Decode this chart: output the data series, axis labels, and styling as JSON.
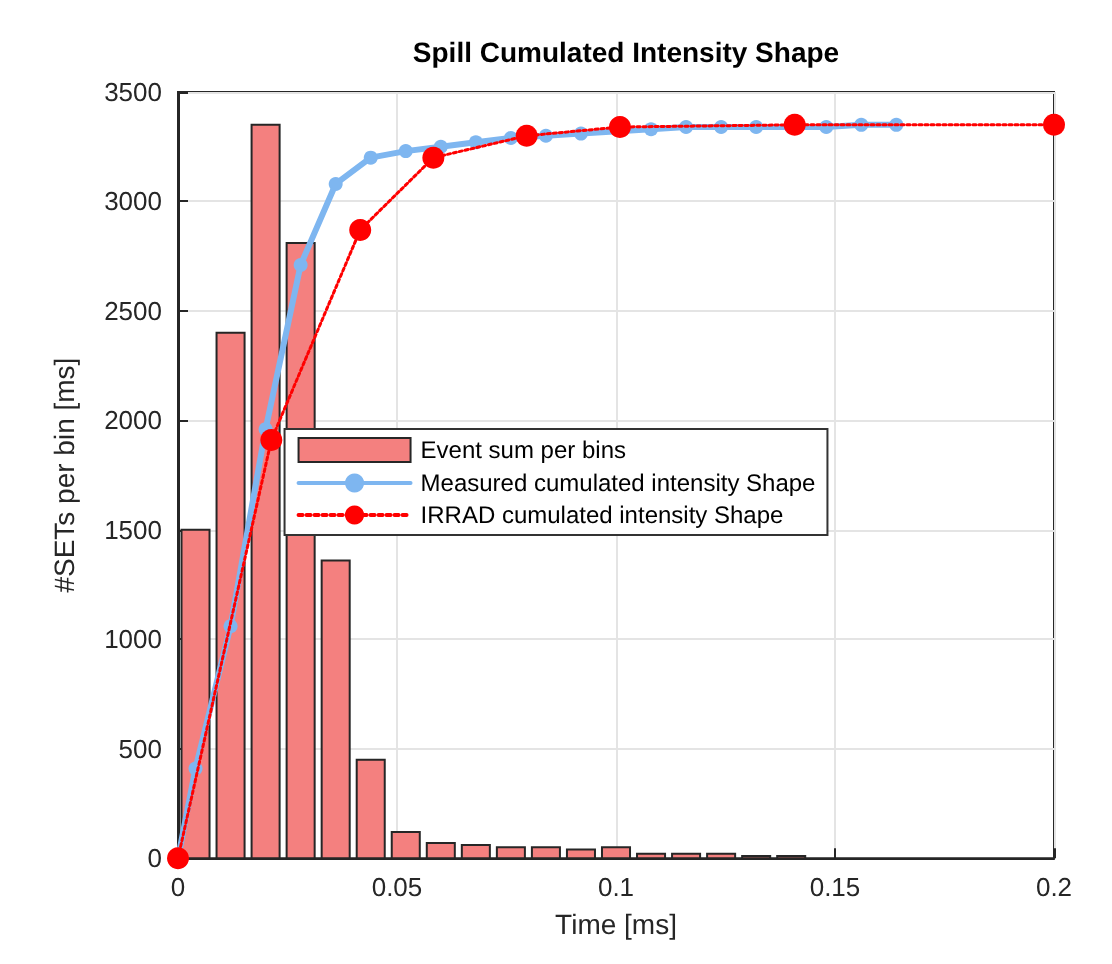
{
  "chart_data": {
    "type": "histogram",
    "title": "Spill Cumulated Intensity Shape",
    "xlabel": "Time [ms]",
    "ylabel": "#SETs per bin [ms]",
    "xlim": [
      0,
      0.2
    ],
    "xticks": [
      0,
      0.05,
      0.1,
      0.15,
      0.2
    ],
    "ylim": [
      0,
      3500
    ],
    "yticks": [
      0,
      500,
      1000,
      1500,
      2000,
      2500,
      3000,
      3500
    ],
    "grid": true,
    "legend": "center",
    "series": [
      {
        "name": "Event sum per bins",
        "color": "#f4807f",
        "bins": [
          0,
          0.008,
          0.016,
          0.024,
          0.032,
          0.04,
          0.048,
          0.056,
          0.064,
          0.072,
          0.08,
          0.088,
          0.096,
          0.104,
          0.112,
          0.12,
          0.128,
          0.136,
          0.144
        ],
        "values": [
          1500,
          2400,
          3350,
          2810,
          1360,
          450,
          120,
          70,
          60,
          50,
          50,
          40,
          50,
          20,
          20,
          20,
          10,
          10
        ]
      },
      {
        "type": "line",
        "name": "Measured cumulated intensity Shape",
        "color": "#7eb6f0",
        "marker": "circle",
        "line_style": "solid",
        "x": [
          0,
          0.004,
          0.012,
          0.02,
          0.028,
          0.036,
          0.044,
          0.052,
          0.06,
          0.068,
          0.076,
          0.084,
          0.092,
          0.1,
          0.108,
          0.116,
          0.124,
          0.132,
          0.14,
          0.148,
          0.156,
          0.164
        ],
        "values": [
          0,
          410,
          1060,
          1960,
          2710,
          3080,
          3200,
          3230,
          3250,
          3270,
          3290,
          3300,
          3310,
          null,
          3330,
          3340,
          3340,
          3340,
          3340,
          3340,
          3350,
          3350
        ]
      },
      {
        "type": "line",
        "name": "IRRAD cumulated intensity Shape",
        "color": "#ff0000",
        "marker": "circle",
        "line_style": "dotted",
        "x": [
          0,
          0.0213,
          0.0416,
          0.0583,
          0.0796,
          0.1009,
          0.1408,
          0.2
        ],
        "values": [
          0,
          1910,
          2870,
          3200,
          3300,
          3340,
          3350,
          3350
        ]
      }
    ]
  }
}
